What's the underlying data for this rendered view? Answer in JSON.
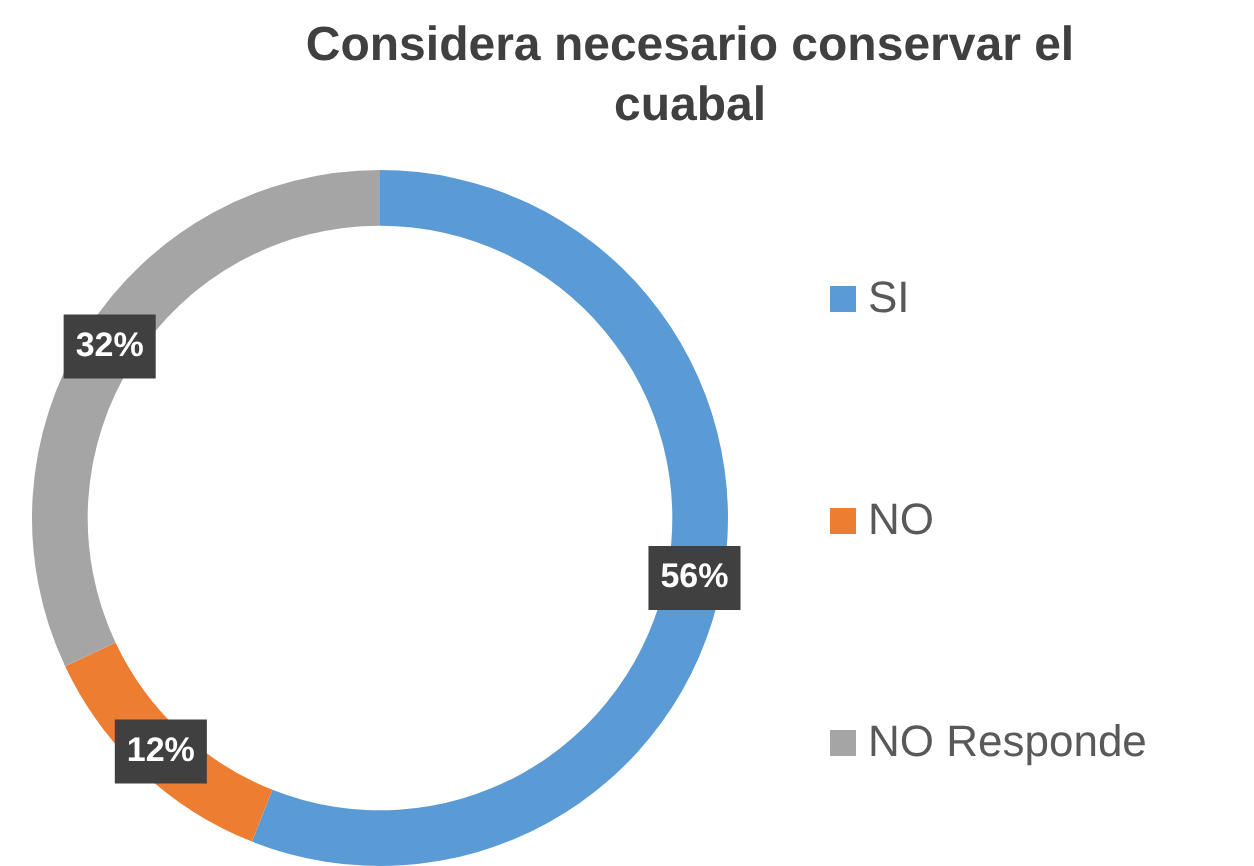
{
  "chart_data": {
    "type": "donut",
    "title": "Considera necesario conservar el cuabal",
    "categories": [
      "SI",
      "NO",
      "NO Responde"
    ],
    "values": [
      56,
      12,
      32
    ],
    "colors": [
      "#5b9bd5",
      "#ed7d31",
      "#a5a5a5"
    ],
    "value_labels": [
      "56%",
      "12%",
      "32%"
    ],
    "legend": "right"
  }
}
